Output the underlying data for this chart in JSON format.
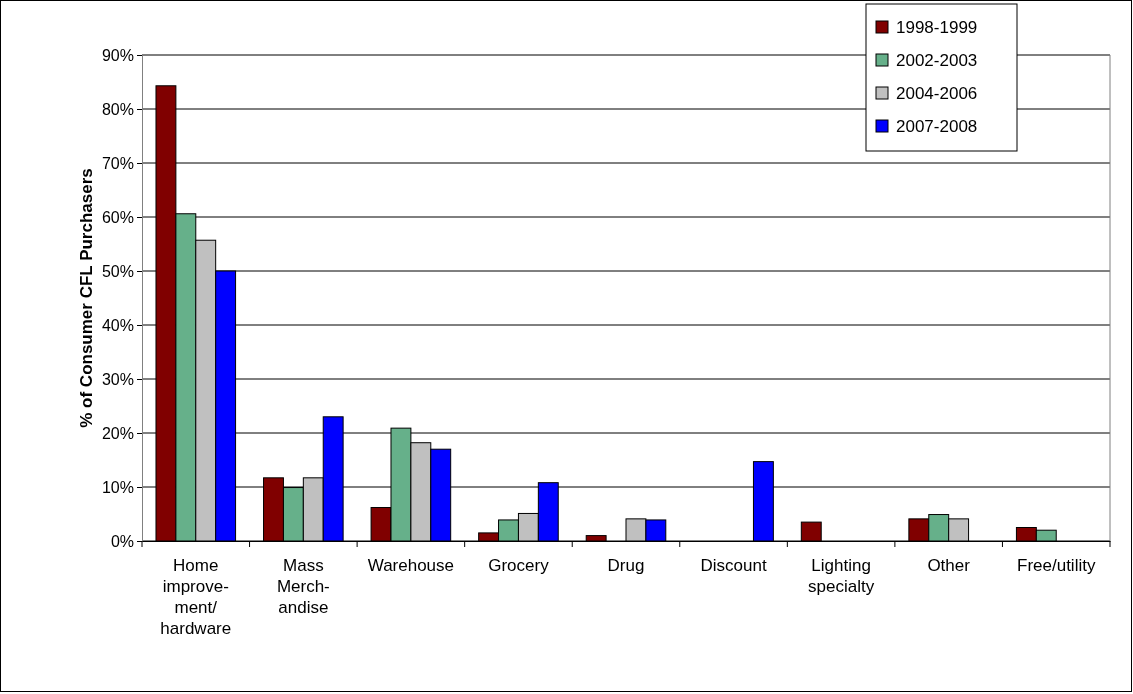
{
  "chart_data": {
    "type": "bar",
    "ylabel": "% of Consumer CFL Purchasers",
    "categories": [
      "Home improve- ment/ hardware",
      "Mass Merch- andise",
      "Warehouse",
      "Grocery",
      "Drug",
      "Discount",
      "Lighting specialty",
      "Other",
      "Free/utility"
    ],
    "series": [
      {
        "name": "1998-1999",
        "color": "#800000",
        "values": [
          84.3,
          11.7,
          6.2,
          1.5,
          1.0,
          null,
          3.5,
          4.1,
          2.5
        ]
      },
      {
        "name": "2002-2003",
        "color": "#66b08a",
        "values": [
          60.6,
          9.9,
          20.9,
          3.9,
          null,
          null,
          null,
          4.9,
          2.0
        ]
      },
      {
        "name": "2004-2006",
        "color": "#c0c0c0",
        "values": [
          55.7,
          11.7,
          18.2,
          5.1,
          4.1,
          null,
          null,
          4.1,
          null
        ]
      },
      {
        "name": "2007-2008",
        "color": "#0000ff",
        "values": [
          50,
          23,
          17,
          10.8,
          3.9,
          14.7,
          null,
          null,
          null
        ]
      }
    ],
    "ylim": [
      0,
      90
    ],
    "yticks": [
      {
        "value": 0,
        "label": "0%"
      },
      {
        "value": 10,
        "label": "10%"
      },
      {
        "value": 20,
        "label": "20%"
      },
      {
        "value": 30,
        "label": "30%"
      },
      {
        "value": 40,
        "label": "40%"
      },
      {
        "value": 50,
        "label": "50%"
      },
      {
        "value": 60,
        "label": "60%"
      },
      {
        "value": 70,
        "label": "70%"
      },
      {
        "value": 80,
        "label": "80%"
      },
      {
        "value": 90,
        "label": "90%"
      }
    ],
    "grid": "y",
    "legend": "top right"
  }
}
